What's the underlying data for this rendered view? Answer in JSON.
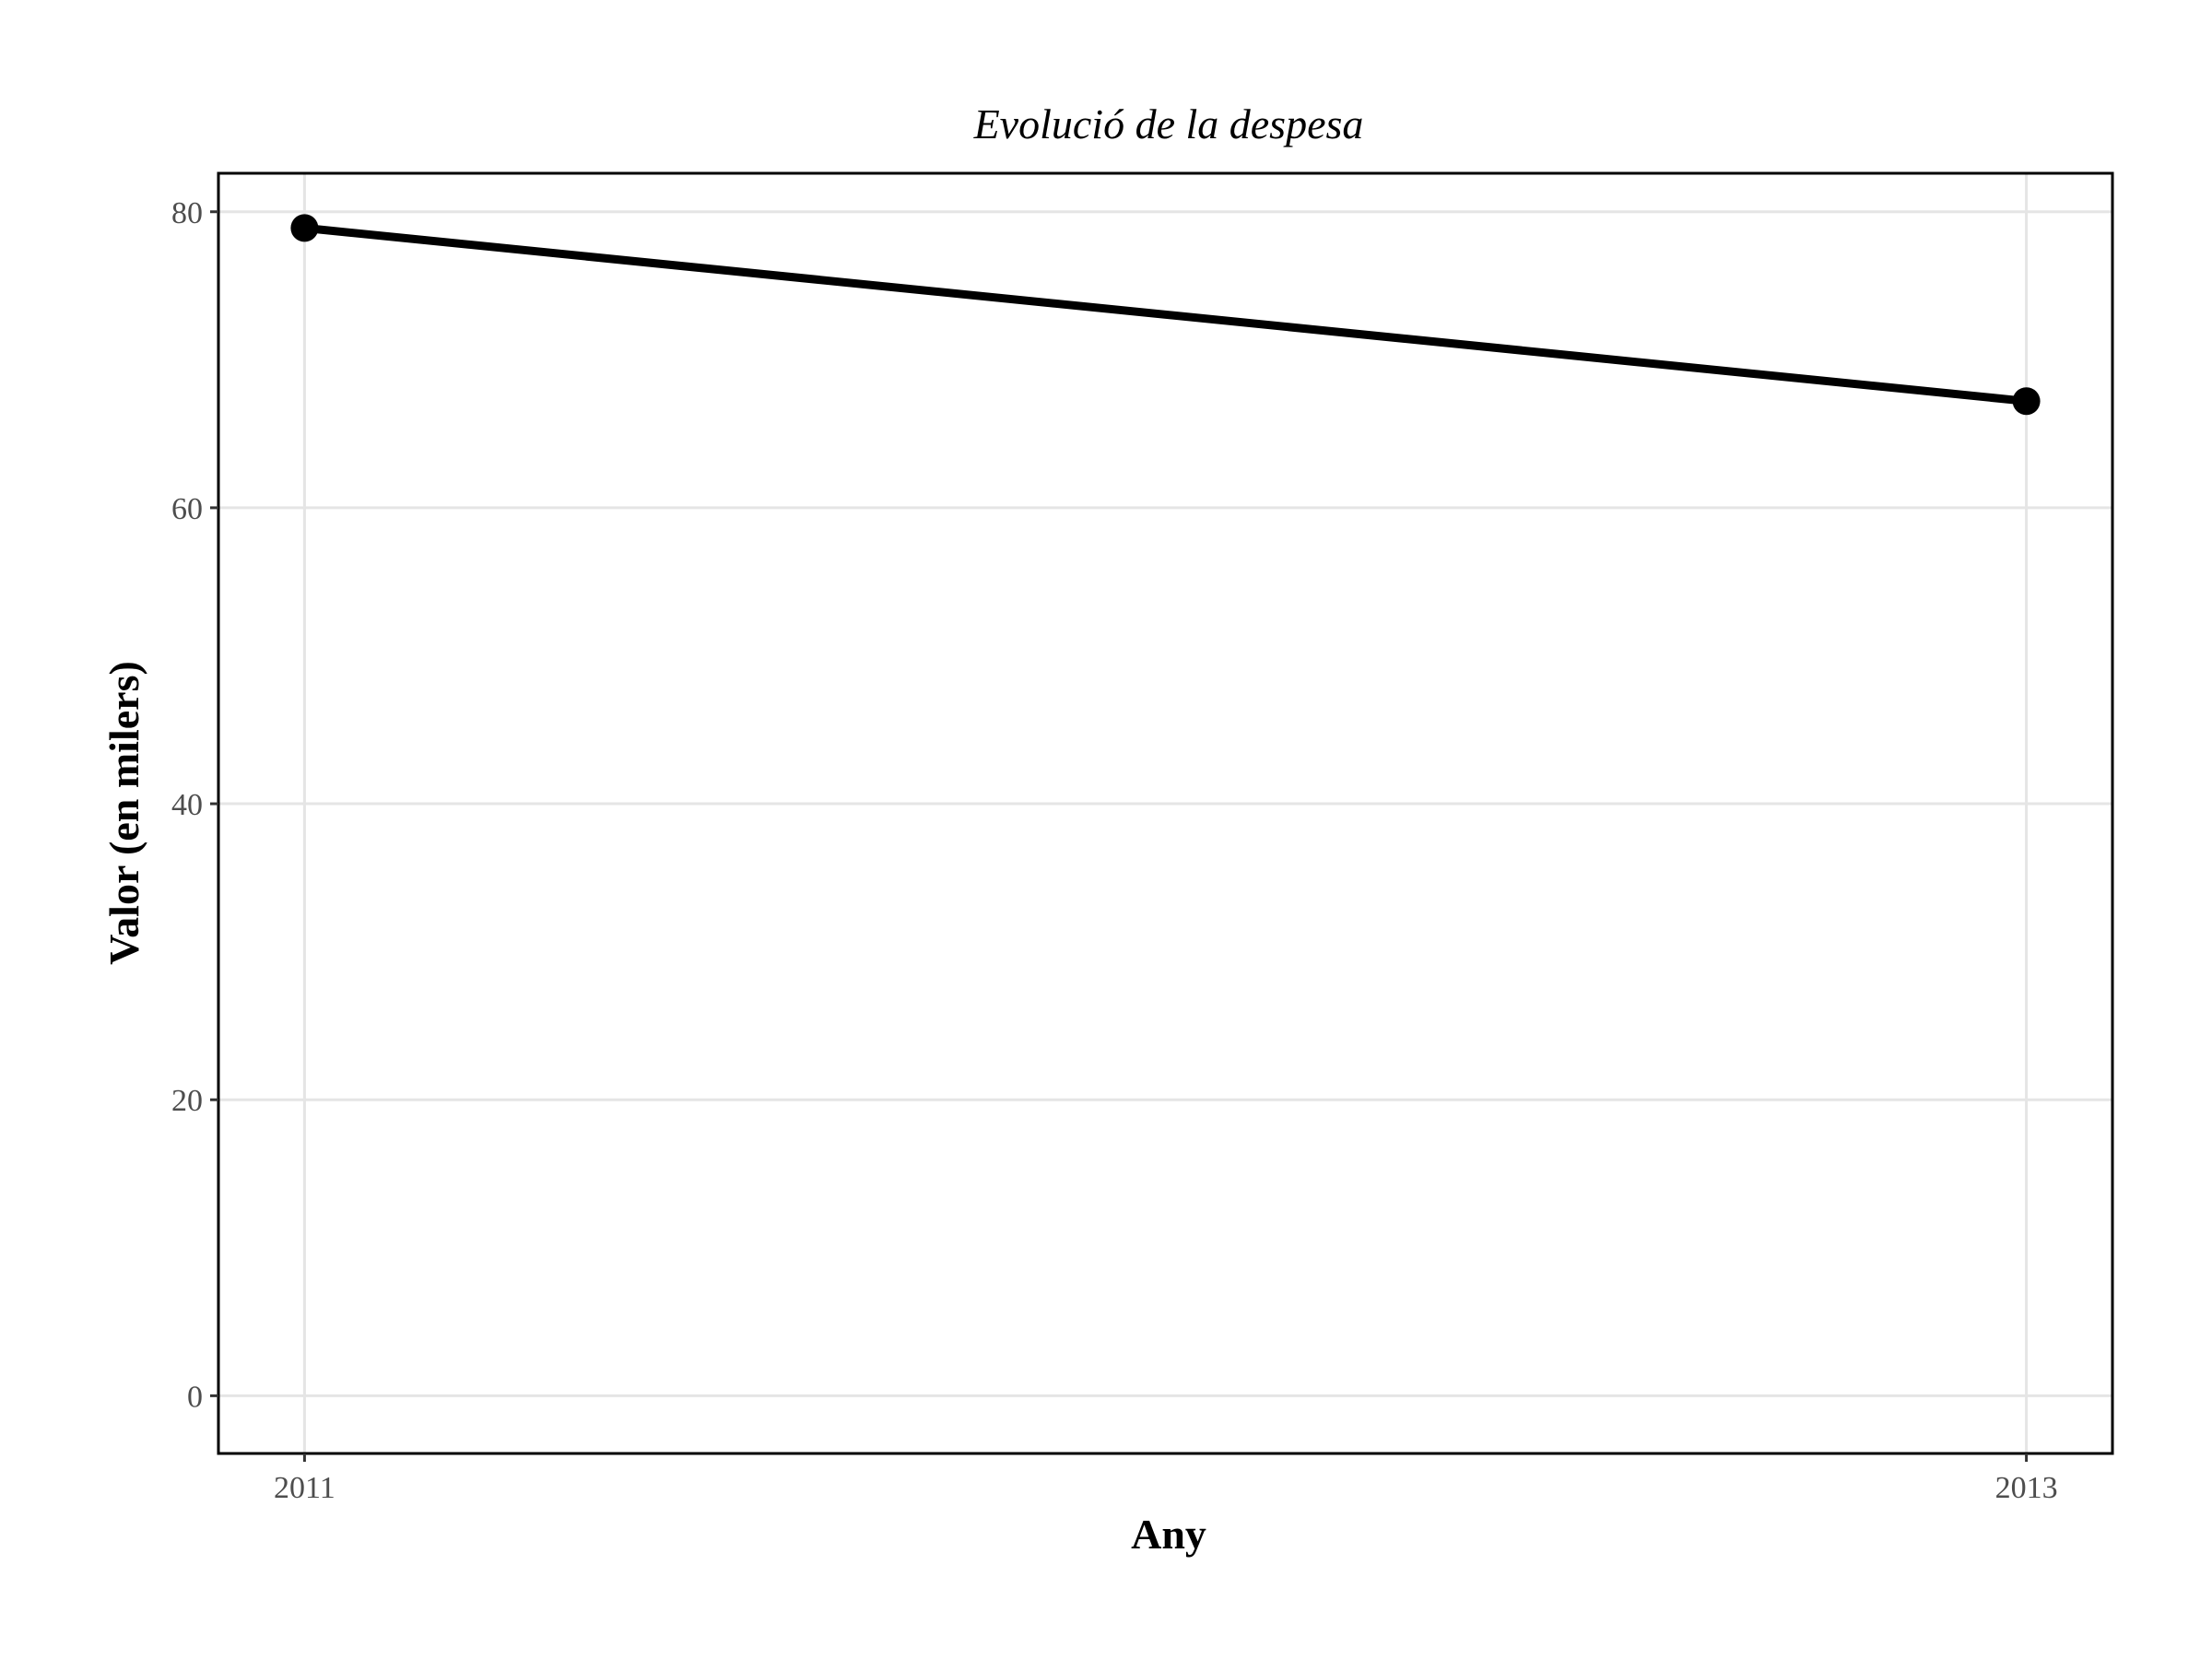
{
  "chart_data": {
    "type": "line",
    "title": "Evolució de la despesa",
    "xlabel": "Any",
    "ylabel": "Valor (en milers)",
    "x": [
      2011,
      2013
    ],
    "series": [
      {
        "values": [
          78.9,
          67.2
        ]
      }
    ],
    "x_ticks": [
      "2011",
      "2013"
    ],
    "y_ticks": [
      "0",
      "20",
      "40",
      "60",
      "80"
    ],
    "xlim": [
      2010.9,
      2013.1
    ],
    "ylim": [
      -3.9,
      82.6
    ],
    "grid": true,
    "legend": "none",
    "colors": {
      "line": "#000000",
      "grid": "#e5e5e5",
      "frame": "#000000",
      "tick_text": "#4d4d4d"
    }
  }
}
